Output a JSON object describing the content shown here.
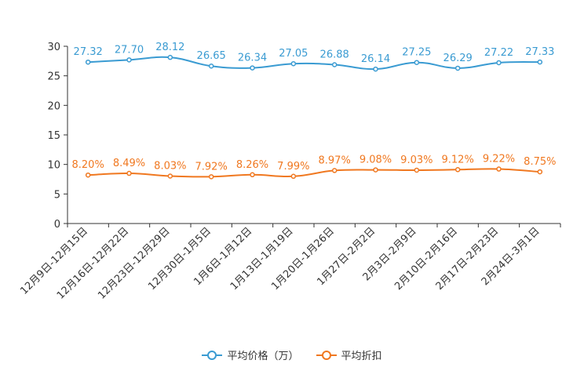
{
  "chart_data": {
    "type": "line",
    "categories": [
      "12月9日-12月15日",
      "12月16日-12月22日",
      "12月23日-12月29日",
      "12月30日-1月5日",
      "1月6日-1月12日",
      "1月13日-1月19日",
      "1月20日-1月26日",
      "1月27日-2月2日",
      "2月3日-2月9日",
      "2月10日-2月16日",
      "2月17日-2月23日",
      "2月24日-3月1日"
    ],
    "ylim": [
      0,
      30
    ],
    "yticks": [
      0,
      5,
      10,
      15,
      20,
      25,
      30
    ],
    "series": [
      {
        "name": "平均价格（万）",
        "color": "#3a9bd2",
        "values": [
          27.32,
          27.7,
          28.12,
          26.65,
          26.34,
          27.05,
          26.88,
          26.14,
          27.25,
          26.29,
          27.22,
          27.33
        ],
        "labels": [
          "27.32",
          "27.70",
          "28.12",
          "26.65",
          "26.34",
          "27.05",
          "26.88",
          "26.14",
          "27.25",
          "26.29",
          "27.22",
          "27.33"
        ]
      },
      {
        "name": "平均折扣",
        "color": "#f07820",
        "values": [
          8.2,
          8.49,
          8.03,
          7.92,
          8.26,
          7.99,
          8.97,
          9.08,
          9.03,
          9.12,
          9.22,
          8.75
        ],
        "labels": [
          "8.20%",
          "8.49%",
          "8.03%",
          "7.92%",
          "8.26%",
          "7.99%",
          "8.97%",
          "9.08%",
          "9.03%",
          "9.12%",
          "9.22%",
          "8.75%"
        ]
      }
    ],
    "legend_position": "bottom-center"
  }
}
